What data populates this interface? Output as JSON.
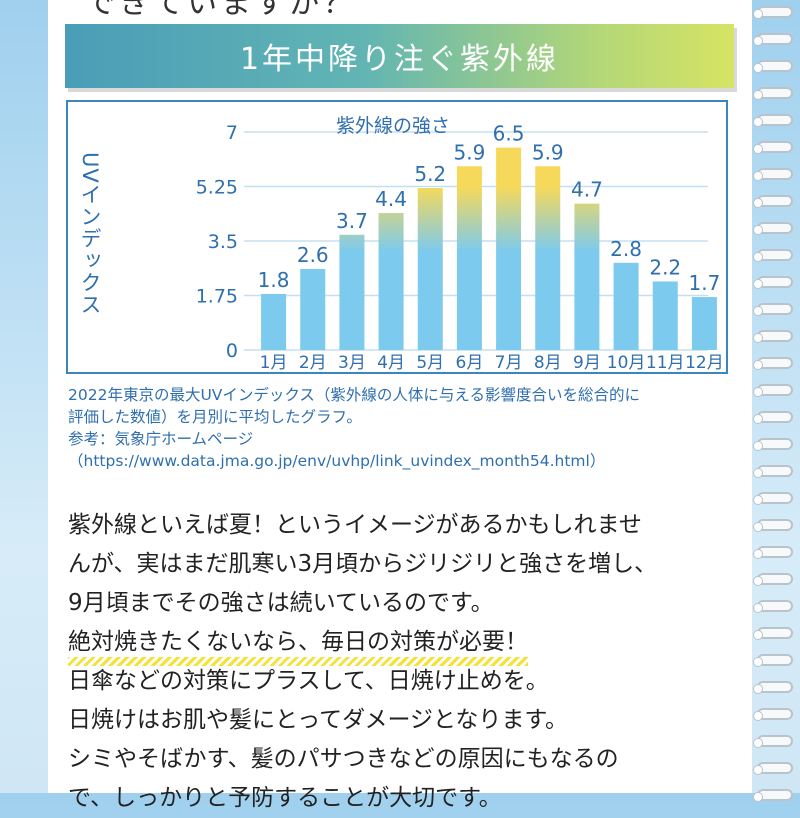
{
  "top_text": "できていますか？",
  "banner_title": "1年中降り注ぐ紫外線",
  "chart_data": {
    "type": "bar",
    "title": "紫外線の強さ",
    "ylabel": "UVインデックス",
    "categories": [
      "1月",
      "2月",
      "3月",
      "4月",
      "5月",
      "6月",
      "7月",
      "8月",
      "9月",
      "10月",
      "11月",
      "12月"
    ],
    "values": [
      1.8,
      2.6,
      3.7,
      4.4,
      5.2,
      5.9,
      6.5,
      5.9,
      4.7,
      2.8,
      2.2,
      1.7
    ],
    "ylim": [
      0,
      7
    ],
    "yticks": [
      "0",
      "1.75",
      "3.5",
      "5.25",
      "7"
    ],
    "grid": true,
    "colors": {
      "bar_base": "#7ccaee",
      "bar_top": "#f6d95a",
      "axis_text": "#2f6fae",
      "grid": "#c5dff0"
    }
  },
  "caption": {
    "line1": "2022年東京の最大UVインデックス（紫外線の人体に与える影響度合いを総合的に",
    "line2": "評価した数値）を月別に平均したグラフ。",
    "line3": "参考：気象庁ホームページ",
    "line4": "（https://www.data.jma.go.jp/env/uvhp/link_uvindex_month54.html）"
  },
  "body": {
    "line1": "紫外線といえば夏！というイメージがあるかもしれませ",
    "line2": "んが、実はまだ肌寒い3月頃からジリジリと強さを増し、",
    "line3": "9月頃までその強さは続いているのです。",
    "line4": "絶対焼きたくないなら、毎日の対策が必要！",
    "line5": "日傘などの対策にプラスして、日焼け止めを。",
    "line6": "日焼けはお肌や髪にとってダメージとなります。",
    "line7": "シミやそばかす、髪のパサつきなどの原因にもなるの",
    "line8": "で、しっかりと予防することが大切です。"
  }
}
